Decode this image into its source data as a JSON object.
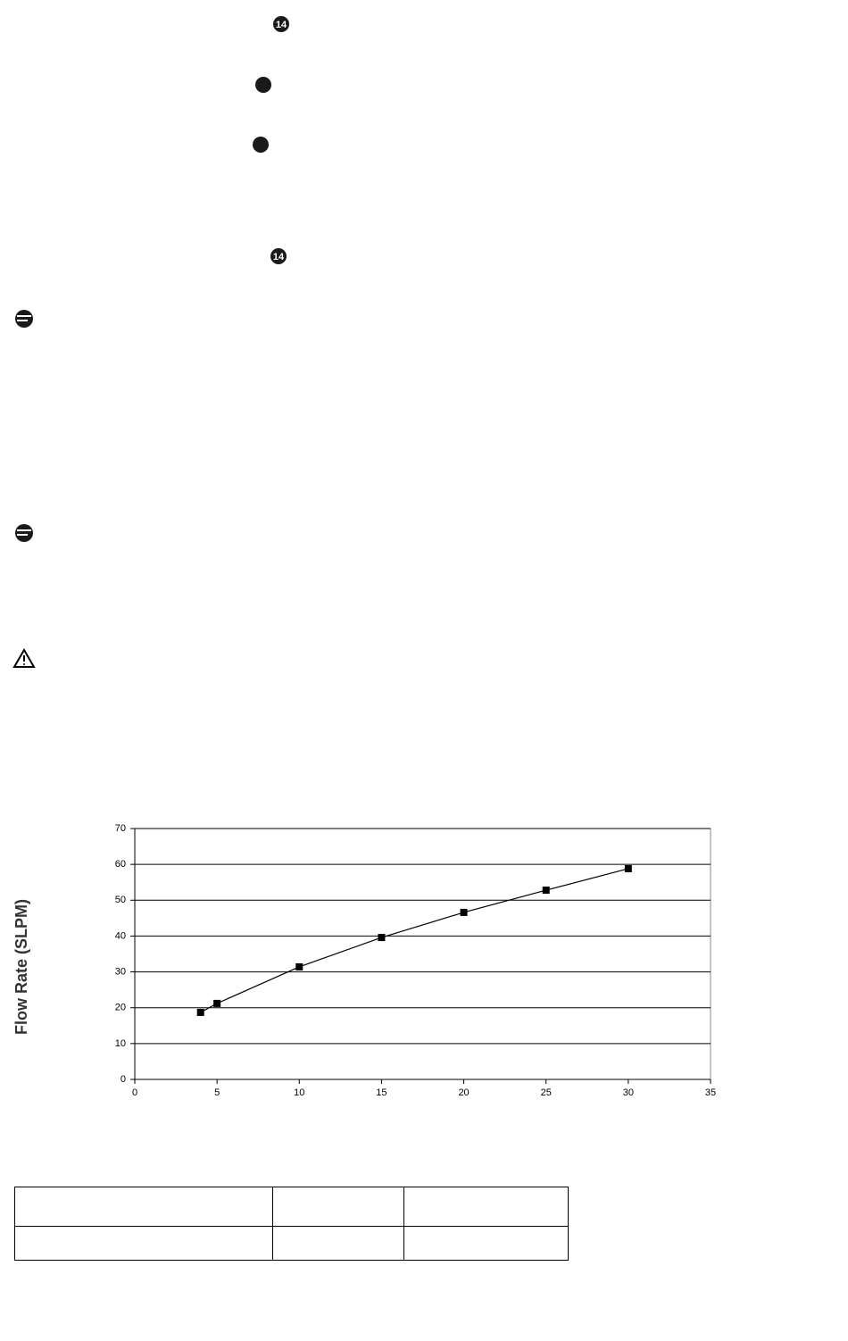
{
  "badges": [
    "14",
    "14"
  ],
  "chart_data": {
    "type": "line",
    "y_label": "Flow Rate (SLPM)",
    "x": [
      4,
      5,
      10,
      15,
      20,
      25,
      30
    ],
    "series": [
      {
        "color": "#000000",
        "values": [
          18.7,
          21.2,
          31.4,
          39.6,
          46.6,
          52.8,
          58.8
        ]
      }
    ],
    "xlim": [
      0,
      35
    ],
    "xticks": [
      0,
      5,
      10,
      15,
      20,
      25,
      30,
      35
    ],
    "ylim": [
      0,
      70
    ],
    "yticks": [
      0,
      10,
      20,
      30,
      40,
      50,
      60,
      70
    ],
    "grid": true
  }
}
